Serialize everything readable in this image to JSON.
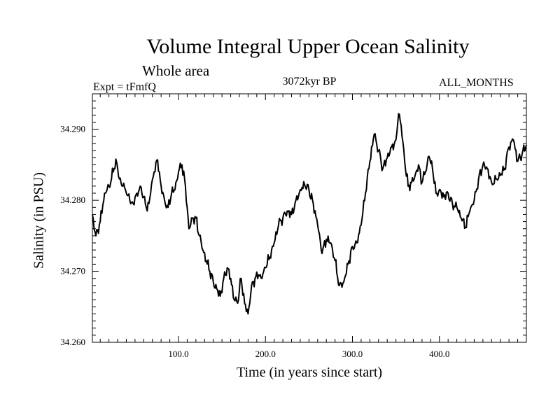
{
  "chart_data": {
    "type": "line",
    "title": "Volume Integral Upper Ocean Salinity",
    "subtitle": "Whole area",
    "experiment_label": "Expt = tFmfQ",
    "period_label": "3072kyr BP",
    "months_label": "ALL_MONTHS",
    "xlabel": "Time (in years since start)",
    "ylabel": "Salinity (in PSU)",
    "xlim": [
      1,
      500
    ],
    "ylim": [
      34.26,
      34.295
    ],
    "x_ticks": [
      100,
      200,
      300,
      400
    ],
    "x_tick_labels": [
      "100.0",
      "200.0",
      "300.0",
      "400.0"
    ],
    "y_ticks": [
      34.26,
      34.27,
      34.28,
      34.29
    ],
    "y_tick_labels": [
      "34.260",
      "34.270",
      "34.280",
      "34.290"
    ],
    "grid": false,
    "series": [
      {
        "name": "salinity",
        "x": [
          1,
          5,
          10,
          15,
          20,
          25,
          28,
          32,
          36,
          40,
          44,
          48,
          52,
          56,
          60,
          64,
          68,
          72,
          76,
          80,
          84,
          88,
          92,
          96,
          100,
          104,
          108,
          112,
          116,
          120,
          124,
          128,
          132,
          136,
          140,
          144,
          148,
          152,
          156,
          160,
          164,
          168,
          172,
          176,
          180,
          184,
          188,
          192,
          196,
          200,
          205,
          210,
          215,
          220,
          225,
          230,
          235,
          240,
          245,
          250,
          255,
          260,
          265,
          270,
          275,
          280,
          285,
          290,
          295,
          300,
          305,
          310,
          315,
          320,
          325,
          330,
          335,
          340,
          345,
          350,
          353,
          356,
          360,
          364,
          368,
          372,
          376,
          380,
          384,
          388,
          392,
          396,
          400,
          405,
          410,
          415,
          420,
          425,
          430,
          435,
          440,
          445,
          450,
          455,
          460,
          465,
          470,
          475,
          480,
          485,
          490,
          495,
          500
        ],
        "values": [
          34.278,
          34.275,
          34.277,
          34.281,
          34.282,
          34.284,
          34.2858,
          34.283,
          34.282,
          34.281,
          34.28,
          34.2795,
          34.281,
          34.282,
          34.2805,
          34.2785,
          34.281,
          34.284,
          34.2857,
          34.282,
          34.28,
          34.279,
          34.281,
          34.2815,
          34.284,
          34.285,
          34.282,
          34.276,
          34.2775,
          34.2775,
          34.275,
          34.273,
          34.2715,
          34.27,
          34.2685,
          34.2675,
          34.2665,
          34.269,
          34.2705,
          34.269,
          34.266,
          34.2655,
          34.269,
          34.2655,
          34.264,
          34.268,
          34.269,
          34.2695,
          34.269,
          34.2705,
          34.272,
          34.274,
          34.2765,
          34.2775,
          34.2785,
          34.278,
          34.28,
          34.2815,
          34.2822,
          34.2815,
          34.2795,
          34.2765,
          34.2725,
          34.2745,
          34.274,
          34.2715,
          34.268,
          34.2685,
          34.271,
          34.2735,
          34.274,
          34.2765,
          34.281,
          34.2855,
          34.2893,
          34.287,
          34.2845,
          34.286,
          34.2875,
          34.2885,
          34.2922,
          34.2905,
          34.2855,
          34.282,
          34.2825,
          34.2835,
          34.285,
          34.2825,
          34.284,
          34.2862,
          34.2845,
          34.281,
          34.2815,
          34.2805,
          34.281,
          34.2795,
          34.279,
          34.2775,
          34.2762,
          34.2785,
          34.28,
          34.283,
          34.285,
          34.2845,
          34.2825,
          34.283,
          34.2835,
          34.2845,
          34.2875,
          34.2885,
          34.2855,
          34.2865,
          34.2878
        ]
      }
    ]
  }
}
